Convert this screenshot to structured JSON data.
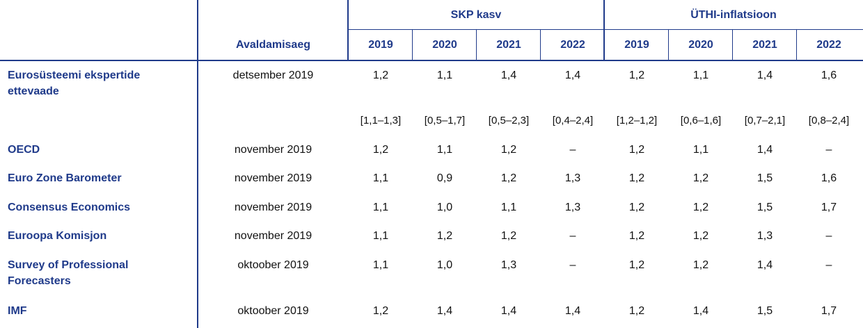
{
  "header": {
    "pub_label": "Avaldamisaeg",
    "group_gdp": "SKP kasv",
    "group_hicp": "ÜTHI-inflatsioon",
    "years": [
      "2019",
      "2020",
      "2021",
      "2022",
      "2019",
      "2020",
      "2021",
      "2022"
    ]
  },
  "rows": [
    {
      "source": "Eurosüsteemi ekspertide ettevaade",
      "date": "detsember 2019",
      "values": [
        "1,2",
        "1,1",
        "1,4",
        "1,4",
        "1,2",
        "1,1",
        "1,4",
        "1,6"
      ],
      "ranges": [
        "[1,1–1,3]",
        "[0,5–1,7]",
        "[0,5–2,3]",
        "[0,4–2,4]",
        "[1,2–1,2]",
        "[0,6–1,6]",
        "[0,7–2,1]",
        "[0,8–2,4]"
      ]
    },
    {
      "source": "OECD",
      "date": "november 2019",
      "values": [
        "1,2",
        "1,1",
        "1,2",
        "–",
        "1,2",
        "1,1",
        "1,4",
        "–"
      ]
    },
    {
      "source": "Euro Zone Barometer",
      "date": "november 2019",
      "values": [
        "1,1",
        "0,9",
        "1,2",
        "1,3",
        "1,2",
        "1,2",
        "1,5",
        "1,6"
      ]
    },
    {
      "source": "Consensus Economics",
      "date": "november 2019",
      "values": [
        "1,1",
        "1,0",
        "1,1",
        "1,3",
        "1,2",
        "1,2",
        "1,5",
        "1,7"
      ]
    },
    {
      "source": "Euroopa Komisjon",
      "date": "november 2019",
      "values": [
        "1,1",
        "1,2",
        "1,2",
        "–",
        "1,2",
        "1,2",
        "1,3",
        "–"
      ]
    },
    {
      "source": "Survey of Professional Forecasters",
      "date": "oktoober 2019",
      "values": [
        "1,1",
        "1,0",
        "1,3",
        "–",
        "1,2",
        "1,2",
        "1,4",
        "–"
      ]
    },
    {
      "source": "IMF",
      "date": "oktoober 2019",
      "values": [
        "1,2",
        "1,4",
        "1,4",
        "1,4",
        "1,2",
        "1,4",
        "1,5",
        "1,7"
      ]
    }
  ]
}
